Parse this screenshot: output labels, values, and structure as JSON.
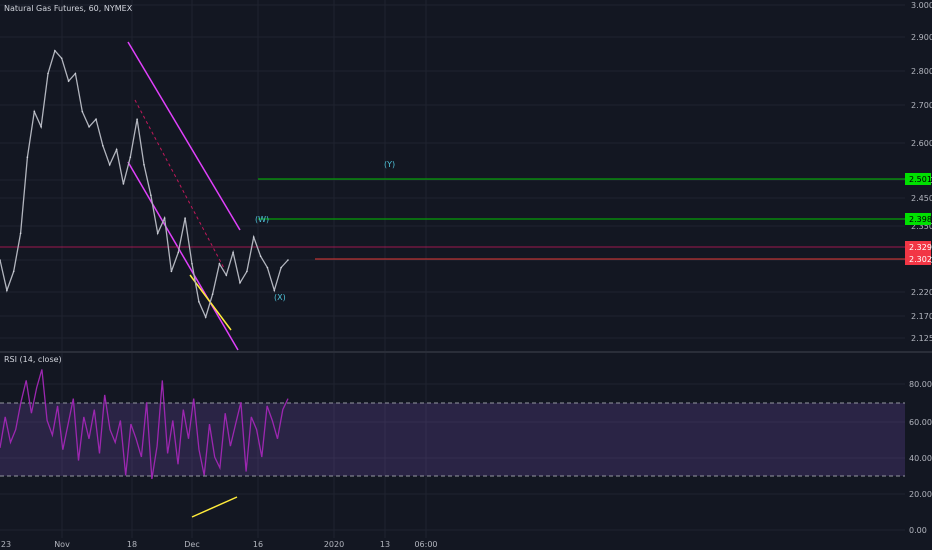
{
  "chart_data": [
    {
      "type": "line",
      "title": "Natural Gas Futures, 60, NYMEX",
      "ylim": [
        2.09,
        3.0
      ],
      "y_ticks": [
        "3.000",
        "2.900",
        "2.800",
        "2.700",
        "2.600",
        "2.500",
        "2.450",
        "2.350",
        "2.270",
        "2.220",
        "2.170",
        "2.125"
      ],
      "x_ticks": [
        "23",
        "Nov",
        "18",
        "Dec",
        "16",
        "2020",
        "13",
        "06:00"
      ],
      "grid": true,
      "price_tags": [
        {
          "text": "2.501",
          "color": "#00e000"
        },
        {
          "text": "2.398",
          "color": "#00e000"
        },
        {
          "text": "2.329",
          "color": "#f23645"
        },
        {
          "text": "2.302",
          "color": "#f23645"
        }
      ],
      "wave_labels": [
        "(W)",
        "(X)",
        "(Y)"
      ],
      "series": [
        {
          "values": [
            2.33,
            2.25,
            2.3,
            2.4,
            2.6,
            2.72,
            2.68,
            2.82,
            2.88,
            2.86,
            2.8,
            2.82,
            2.72,
            2.68,
            2.7,
            2.63,
            2.58,
            2.62,
            2.53,
            2.6,
            2.7,
            2.58,
            2.5,
            2.4,
            2.44,
            2.3,
            2.35,
            2.44,
            2.32,
            2.22,
            2.18,
            2.24,
            2.32,
            2.29,
            2.35,
            2.27,
            2.3,
            2.39,
            2.34,
            2.31,
            2.25,
            2.31,
            2.33
          ],
          "color": "#b2b5be"
        }
      ]
    },
    {
      "type": "line",
      "title": "RSI (14, close)",
      "ylim": [
        0,
        90
      ],
      "y_ticks": [
        "80.00",
        "60.00",
        "40.00",
        "20.00",
        "0.00"
      ],
      "series": [
        {
          "values": [
            45,
            62,
            48,
            55,
            70,
            82,
            64,
            78,
            88,
            60,
            52,
            68,
            44,
            58,
            72,
            38,
            62,
            50,
            66,
            42,
            74,
            55,
            48,
            60,
            30,
            58,
            50,
            40,
            70,
            28,
            46,
            82,
            42,
            60,
            36,
            66,
            50,
            72,
            44,
            30,
            58,
            40,
            34,
            64,
            46,
            58,
            70,
            32,
            62,
            55,
            40,
            68,
            60,
            50,
            66,
            72
          ],
          "color": "#9c27b0"
        }
      ]
    }
  ]
}
